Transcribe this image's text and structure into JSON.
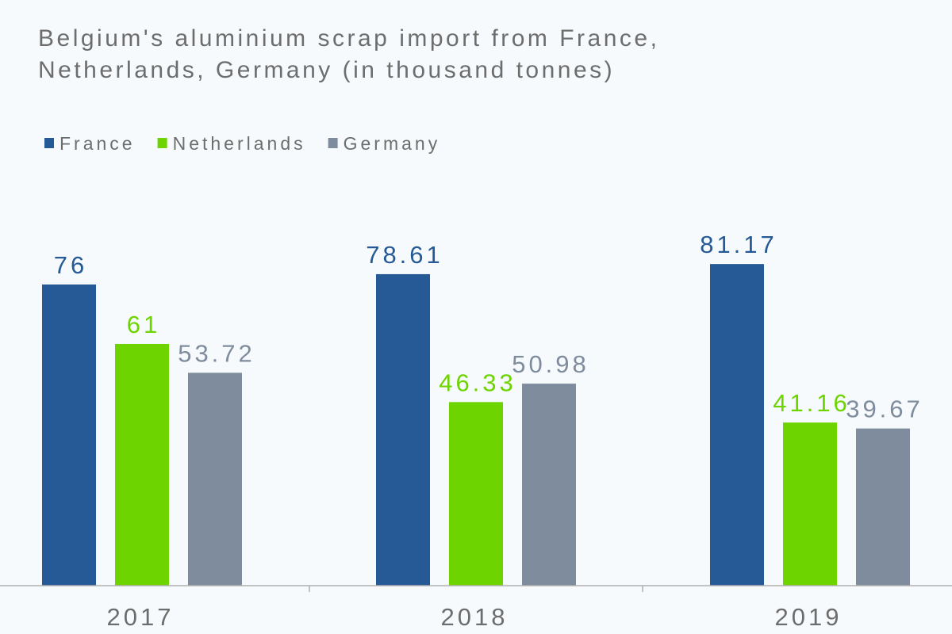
{
  "chart_data": {
    "type": "bar",
    "title_lines": [
      "Belgium's aluminium scrap import from France,",
      "Netherlands, Germany (in thousand tonnes)"
    ],
    "categories": [
      "2017",
      "2018",
      "2019"
    ],
    "series": [
      {
        "name": "France",
        "color": "#255a96",
        "values": [
          76,
          78.61,
          81.17
        ],
        "labels": [
          "76",
          "78.61",
          "81.17"
        ]
      },
      {
        "name": "Netherlands",
        "color": "#6dd400",
        "values": [
          61,
          46.33,
          41.16
        ],
        "labels": [
          "61",
          "46.33",
          "41.16"
        ]
      },
      {
        "name": "Germany",
        "color": "#7f8c9d",
        "values": [
          53.72,
          50.98,
          39.67
        ],
        "labels": [
          "53.72",
          "50.98",
          "39.67"
        ]
      }
    ],
    "legend_position": "top-left",
    "ylim": [
      0,
      100
    ],
    "grid": false,
    "axis_color": "#b0b0b0",
    "label_color_categories": "#6d6d6d"
  }
}
